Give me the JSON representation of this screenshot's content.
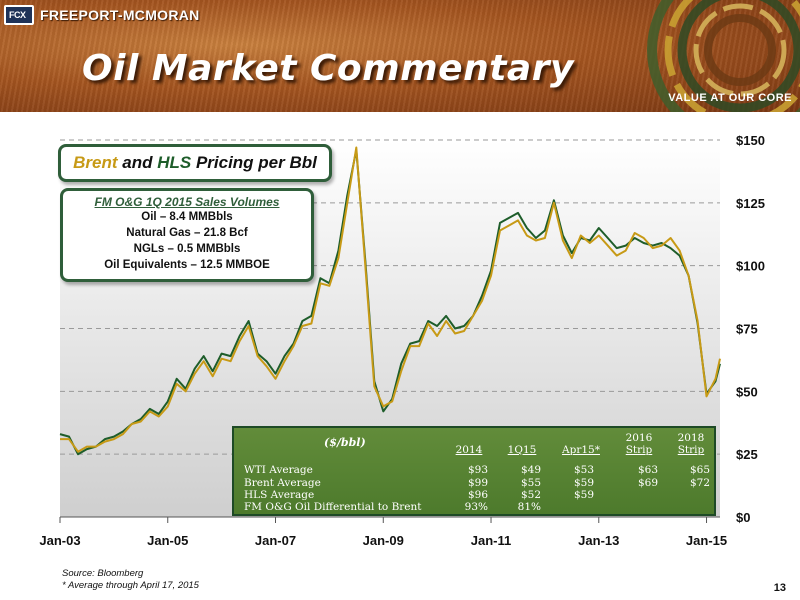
{
  "header": {
    "logo_mark": "FCX",
    "company": "FREEPORT-MCMORAN",
    "title": "Oil Market Commentary",
    "tagline": "VALUE AT OUR CORE"
  },
  "title_box": {
    "brent": "Brent",
    "and": " and ",
    "hls": "HLS",
    "rest": " Pricing per Bbl"
  },
  "volumes": {
    "title": "FM O&G 1Q 2015 Sales Volumes",
    "lines": [
      "Oil – 8.4 MMBbls",
      "Natural Gas – 21.8 Bcf",
      "NGLs – 0.5 MMBbls",
      "Oil Equivalents – 12.5 MMBOE"
    ]
  },
  "table": {
    "unit": "($/bbl)",
    "columns": [
      {
        "top": "",
        "bottom": "2014"
      },
      {
        "top": "",
        "bottom": "1Q15"
      },
      {
        "top": "",
        "bottom": "Apr15*"
      },
      {
        "top": "2016",
        "bottom": "Strip"
      },
      {
        "top": "2018",
        "bottom": "Strip"
      }
    ],
    "rows": [
      {
        "label": "WTI Average",
        "values": [
          "$93",
          "$49",
          "$53",
          "$63",
          "$65"
        ]
      },
      {
        "label": "Brent Average",
        "values": [
          "$99",
          "$55",
          "$59",
          "$69",
          "$72"
        ]
      },
      {
        "label": "HLS Average",
        "values": [
          "$96",
          "$52",
          "$59",
          "",
          ""
        ]
      },
      {
        "label": "FM O&G Oil Differential to Brent",
        "values": [
          "93%",
          "81%",
          "",
          "",
          ""
        ]
      }
    ]
  },
  "footer": {
    "source": "Source: Bloomberg",
    "note": "* Average through April 17, 2015",
    "page": "13"
  },
  "colors": {
    "brent": "#c79a16",
    "hls": "#1e5d2a",
    "green": "#2f5e3a"
  },
  "chart_data": {
    "type": "line",
    "title": "Brent and HLS Pricing per Bbl",
    "xlabel": "",
    "ylabel": "",
    "ylim": [
      0,
      150
    ],
    "xlim": [
      "2003-01",
      "2015-04"
    ],
    "grid": true,
    "y_axis_side": "right",
    "x_ticks": [
      "Jan-03",
      "Jan-05",
      "Jan-07",
      "Jan-09",
      "Jan-11",
      "Jan-13",
      "Jan-15"
    ],
    "y_ticks": [
      "$0",
      "$25",
      "$50",
      "$75",
      "$100",
      "$125",
      "$150"
    ],
    "x": [
      "2003-01",
      "2003-03",
      "2003-05",
      "2003-07",
      "2003-09",
      "2003-11",
      "2004-01",
      "2004-03",
      "2004-05",
      "2004-07",
      "2004-09",
      "2004-11",
      "2005-01",
      "2005-03",
      "2005-05",
      "2005-07",
      "2005-09",
      "2005-11",
      "2006-01",
      "2006-03",
      "2006-05",
      "2006-07",
      "2006-09",
      "2006-11",
      "2007-01",
      "2007-03",
      "2007-05",
      "2007-07",
      "2007-09",
      "2007-11",
      "2008-01",
      "2008-03",
      "2008-05",
      "2008-07",
      "2008-09",
      "2008-11",
      "2009-01",
      "2009-03",
      "2009-05",
      "2009-07",
      "2009-09",
      "2009-11",
      "2010-01",
      "2010-03",
      "2010-05",
      "2010-07",
      "2010-09",
      "2010-11",
      "2011-01",
      "2011-03",
      "2011-05",
      "2011-07",
      "2011-09",
      "2011-11",
      "2012-01",
      "2012-03",
      "2012-05",
      "2012-07",
      "2012-09",
      "2012-11",
      "2013-01",
      "2013-03",
      "2013-05",
      "2013-07",
      "2013-09",
      "2013-11",
      "2014-01",
      "2014-03",
      "2014-05",
      "2014-07",
      "2014-09",
      "2014-11",
      "2015-01",
      "2015-03",
      "2015-04"
    ],
    "series": [
      {
        "name": "Brent",
        "values": [
          31,
          31,
          26,
          28,
          28,
          30,
          31,
          33,
          37,
          38,
          42,
          40,
          44,
          53,
          50,
          57,
          62,
          56,
          63,
          62,
          70,
          76,
          64,
          60,
          55,
          62,
          68,
          76,
          77,
          93,
          92,
          103,
          125,
          147,
          100,
          52,
          44,
          46,
          58,
          68,
          68,
          77,
          72,
          78,
          73,
          74,
          80,
          86,
          96,
          114,
          116,
          118,
          112,
          110,
          111,
          125,
          110,
          103,
          112,
          109,
          112,
          108,
          104,
          106,
          113,
          111,
          107,
          108,
          111,
          106,
          96,
          78,
          48,
          55,
          63
        ]
      },
      {
        "name": "HLS",
        "values": [
          33,
          32,
          25,
          27,
          28,
          31,
          32,
          34,
          37,
          39,
          43,
          41,
          46,
          55,
          51,
          59,
          64,
          58,
          65,
          64,
          72,
          78,
          65,
          62,
          57,
          64,
          69,
          78,
          80,
          95,
          93,
          106,
          128,
          146,
          102,
          54,
          42,
          47,
          61,
          69,
          70,
          78,
          76,
          80,
          75,
          76,
          80,
          88,
          98,
          117,
          119,
          121,
          115,
          111,
          114,
          126,
          112,
          105,
          111,
          110,
          115,
          111,
          107,
          108,
          111,
          109,
          108,
          109,
          107,
          104,
          96,
          77,
          49,
          54,
          61
        ]
      }
    ]
  }
}
